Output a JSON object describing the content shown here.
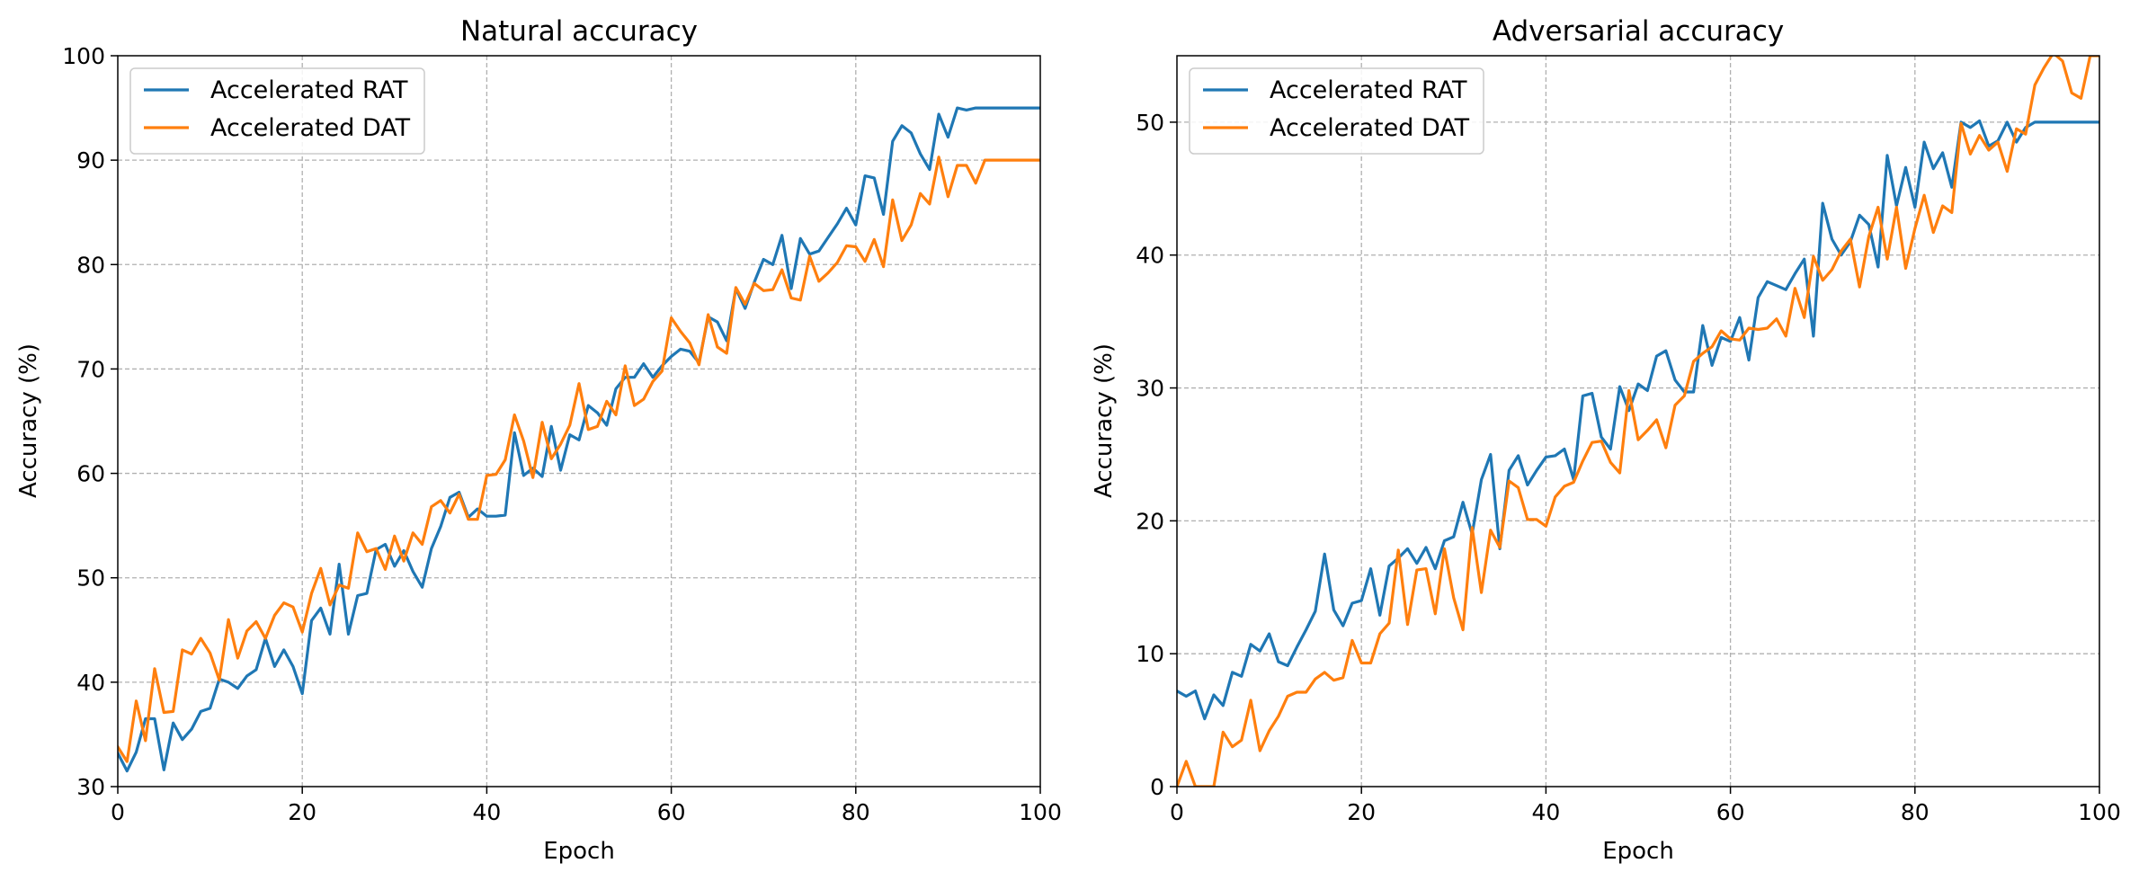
{
  "colors": {
    "rat": "#1f77b4",
    "dat": "#ff7f0e",
    "grid": "#b0b0b0",
    "axes": "#000000"
  },
  "chart_data": [
    {
      "type": "line",
      "title": "Natural accuracy",
      "xlabel": "Epoch",
      "ylabel": "Accuracy (%)",
      "xlim": [
        0,
        100
      ],
      "ylim": [
        30,
        100
      ],
      "xticks": [
        0,
        20,
        40,
        60,
        80,
        100
      ],
      "yticks": [
        30,
        40,
        50,
        60,
        70,
        80,
        90,
        100
      ],
      "grid": true,
      "legend_position": "top-left",
      "series": [
        {
          "name": "Accelerated RAT",
          "color": "#1f77b4",
          "x": [
            0,
            1,
            2,
            3,
            4,
            5,
            6,
            7,
            8,
            9,
            10,
            11,
            12,
            13,
            14,
            15,
            16,
            17,
            18,
            19,
            20,
            21,
            22,
            23,
            24,
            25,
            26,
            27,
            28,
            29,
            30,
            31,
            32,
            33,
            34,
            35,
            36,
            37,
            38,
            39,
            40,
            41,
            42,
            43,
            44,
            45,
            46,
            47,
            48,
            49,
            50,
            51,
            52,
            53,
            54,
            55,
            56,
            57,
            58,
            59,
            60,
            61,
            62,
            63,
            64,
            65,
            66,
            67,
            68,
            69,
            70,
            71,
            72,
            73,
            74,
            75,
            76,
            77,
            78,
            79,
            80,
            81,
            82,
            83,
            84,
            85,
            86,
            87,
            88,
            89,
            90,
            91,
            92,
            93,
            94,
            95,
            96,
            97,
            98,
            99,
            100
          ],
          "y": [
            33.2,
            31.5,
            33.3,
            36.5,
            36.5,
            31.6,
            36.1,
            34.5,
            35.5,
            37.2,
            37.5,
            40.3,
            40.0,
            39.4,
            40.6,
            41.2,
            44.2,
            41.5,
            43.1,
            41.5,
            38.9,
            45.9,
            47.1,
            44.6,
            51.3,
            44.6,
            48.3,
            48.5,
            52.7,
            53.2,
            51.1,
            52.6,
            50.6,
            49.1,
            52.8,
            54.9,
            57.7,
            58.2,
            55.8,
            56.6,
            55.9,
            55.9,
            56.0,
            63.9,
            59.8,
            60.5,
            59.7,
            64.5,
            60.3,
            63.7,
            63.2,
            66.5,
            65.8,
            64.6,
            68.1,
            69.2,
            69.2,
            70.5,
            69.2,
            70.3,
            71.2,
            71.9,
            71.7,
            70.6,
            75.0,
            74.5,
            72.7,
            77.7,
            75.8,
            78.3,
            80.5,
            80.0,
            82.8,
            77.7,
            82.5,
            81.0,
            81.3,
            82.6,
            83.9,
            85.4,
            83.8,
            88.5,
            88.3,
            84.8,
            91.8,
            93.3,
            92.6,
            90.6,
            89.1,
            94.4,
            92.2,
            95.0,
            94.8,
            95.0,
            95.0,
            95.0,
            95.0,
            95.0,
            95.0,
            95.0,
            95.0
          ]
        },
        {
          "name": "Accelerated DAT",
          "color": "#ff7f0e",
          "x": [
            0,
            1,
            2,
            3,
            4,
            5,
            6,
            7,
            8,
            9,
            10,
            11,
            12,
            13,
            14,
            15,
            16,
            17,
            18,
            19,
            20,
            21,
            22,
            23,
            24,
            25,
            26,
            27,
            28,
            29,
            30,
            31,
            32,
            33,
            34,
            35,
            36,
            37,
            38,
            39,
            40,
            41,
            42,
            43,
            44,
            45,
            46,
            47,
            48,
            49,
            50,
            51,
            52,
            53,
            54,
            55,
            56,
            57,
            58,
            59,
            60,
            61,
            62,
            63,
            64,
            65,
            66,
            67,
            68,
            69,
            70,
            71,
            72,
            73,
            74,
            75,
            76,
            77,
            78,
            79,
            80,
            81,
            82,
            83,
            84,
            85,
            86,
            87,
            88,
            89,
            90,
            91,
            92,
            93,
            94,
            95,
            96,
            97,
            98,
            99,
            100
          ],
          "y": [
            33.8,
            32.4,
            38.2,
            34.4,
            41.3,
            37.1,
            37.2,
            43.1,
            42.7,
            44.2,
            42.8,
            40.2,
            46.0,
            42.3,
            44.9,
            45.8,
            44.2,
            46.4,
            47.6,
            47.2,
            44.8,
            48.5,
            50.9,
            47.4,
            49.3,
            49.0,
            54.3,
            52.5,
            52.8,
            50.8,
            54.0,
            51.6,
            54.3,
            53.2,
            56.8,
            57.4,
            56.2,
            58.0,
            55.6,
            55.6,
            59.8,
            59.9,
            61.3,
            65.6,
            63.1,
            59.6,
            64.9,
            61.4,
            62.8,
            64.6,
            68.6,
            64.2,
            64.5,
            66.9,
            65.6,
            70.3,
            66.5,
            67.1,
            68.8,
            69.8,
            74.9,
            73.6,
            72.5,
            70.4,
            75.2,
            72.1,
            71.5,
            77.8,
            76.2,
            78.2,
            77.5,
            77.6,
            79.5,
            76.8,
            76.6,
            80.8,
            78.4,
            79.2,
            80.2,
            81.8,
            81.7,
            80.3,
            82.4,
            79.8,
            86.2,
            82.3,
            83.8,
            86.8,
            85.8,
            90.3,
            86.5,
            89.5,
            89.5,
            87.8,
            90.0,
            90.0,
            90.0,
            90.0,
            90.0,
            90.0,
            90.0
          ]
        }
      ]
    },
    {
      "type": "line",
      "title": "Adversarial accuracy",
      "xlabel": "Epoch",
      "ylabel": "Accuracy (%)",
      "xlim": [
        0,
        100
      ],
      "ylim": [
        0,
        55
      ],
      "xticks": [
        0,
        20,
        40,
        60,
        80,
        100
      ],
      "yticks": [
        0,
        10,
        20,
        30,
        40,
        50
      ],
      "grid": true,
      "legend_position": "top-left",
      "series": [
        {
          "name": "Accelerated RAT",
          "color": "#1f77b4",
          "x": [
            0,
            1,
            2,
            3,
            4,
            5,
            6,
            7,
            8,
            9,
            10,
            11,
            12,
            13,
            14,
            15,
            16,
            17,
            18,
            19,
            20,
            21,
            22,
            23,
            24,
            25,
            26,
            27,
            28,
            29,
            30,
            31,
            32,
            33,
            34,
            35,
            36,
            37,
            38,
            39,
            40,
            41,
            42,
            43,
            44,
            45,
            46,
            47,
            48,
            49,
            50,
            51,
            52,
            53,
            54,
            55,
            56,
            57,
            58,
            59,
            60,
            61,
            62,
            63,
            64,
            65,
            66,
            67,
            68,
            69,
            70,
            71,
            72,
            73,
            74,
            75,
            76,
            77,
            78,
            79,
            80,
            81,
            82,
            83,
            84,
            85,
            86,
            87,
            88,
            89,
            90,
            91,
            92,
            93,
            94,
            95,
            96,
            97,
            98,
            99,
            100
          ],
          "y": [
            7.2,
            6.8,
            7.2,
            5.1,
            6.9,
            6.1,
            8.6,
            8.3,
            10.7,
            10.2,
            11.5,
            9.4,
            9.1,
            10.5,
            11.8,
            13.2,
            17.5,
            13.3,
            12.1,
            13.8,
            14.0,
            16.4,
            12.9,
            16.6,
            17.2,
            17.9,
            16.8,
            18.0,
            16.4,
            18.5,
            18.8,
            21.4,
            19.0,
            23.1,
            25.0,
            17.9,
            23.8,
            24.9,
            22.7,
            23.8,
            24.8,
            24.9,
            25.4,
            23.1,
            29.4,
            29.6,
            26.3,
            25.4,
            30.1,
            28.3,
            30.3,
            29.8,
            32.4,
            32.8,
            30.6,
            29.7,
            29.7,
            34.7,
            31.7,
            33.8,
            33.5,
            35.3,
            32.1,
            36.8,
            38.0,
            37.7,
            37.4,
            38.6,
            39.7,
            33.9,
            43.9,
            41.2,
            40.0,
            41.0,
            43.0,
            42.3,
            39.1,
            47.5,
            43.7,
            46.6,
            43.6,
            48.5,
            46.5,
            47.7,
            45.1,
            50.0,
            49.6,
            50.1,
            48.2,
            48.6,
            50.0,
            48.5,
            49.6,
            50.0,
            50.0,
            50.0,
            50.0,
            50.0,
            50.0,
            50.0,
            50.0
          ]
        },
        {
          "name": "Accelerated DAT",
          "color": "#ff7f0e",
          "x": [
            0,
            1,
            2,
            3,
            4,
            5,
            6,
            7,
            8,
            9,
            10,
            11,
            12,
            13,
            14,
            15,
            16,
            17,
            18,
            19,
            20,
            21,
            22,
            23,
            24,
            25,
            26,
            27,
            28,
            29,
            30,
            31,
            32,
            33,
            34,
            35,
            36,
            37,
            38,
            39,
            40,
            41,
            42,
            43,
            44,
            45,
            46,
            47,
            48,
            49,
            50,
            51,
            52,
            53,
            54,
            55,
            56,
            57,
            58,
            59,
            60,
            61,
            62,
            63,
            64,
            65,
            66,
            67,
            68,
            69,
            70,
            71,
            72,
            73,
            74,
            75,
            76,
            77,
            78,
            79,
            80,
            81,
            82,
            83,
            84,
            85,
            86,
            87,
            88,
            89,
            90,
            91,
            92,
            93,
            94,
            95,
            96,
            97,
            98,
            99,
            100
          ],
          "y": [
            0.0,
            1.9,
            0.0,
            0.0,
            0.0,
            4.1,
            3.0,
            3.5,
            6.5,
            2.7,
            4.2,
            5.3,
            6.8,
            7.1,
            7.1,
            8.1,
            8.6,
            8.0,
            8.2,
            11.0,
            9.3,
            9.3,
            11.5,
            12.3,
            17.8,
            12.2,
            16.3,
            16.4,
            13.0,
            17.9,
            14.2,
            11.8,
            19.5,
            14.6,
            19.3,
            18.0,
            23.0,
            22.5,
            20.1,
            20.1,
            19.6,
            21.8,
            22.6,
            22.9,
            24.5,
            25.9,
            26.0,
            24.4,
            23.6,
            29.8,
            26.1,
            26.8,
            27.6,
            25.5,
            28.7,
            29.4,
            32.0,
            32.6,
            33.1,
            34.3,
            33.7,
            33.6,
            34.5,
            34.4,
            34.5,
            35.2,
            33.9,
            37.5,
            35.3,
            39.9,
            38.1,
            38.9,
            40.3,
            41.2,
            37.6,
            41.4,
            43.6,
            39.7,
            43.6,
            39.0,
            42.0,
            44.5,
            41.7,
            43.7,
            43.2,
            49.9,
            47.6,
            49.0,
            47.9,
            48.5,
            46.3,
            49.5,
            49.1,
            52.8,
            54.1,
            55.2,
            54.6,
            52.2,
            51.8,
            55.0,
            55.0
          ]
        }
      ]
    }
  ]
}
